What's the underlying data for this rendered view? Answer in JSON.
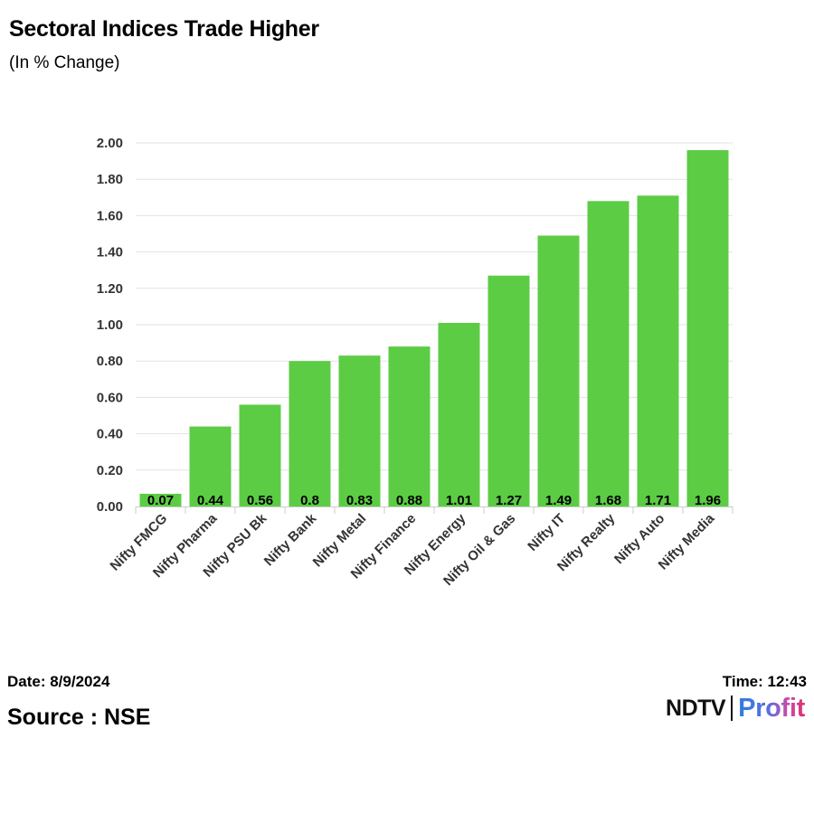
{
  "chart_data": {
    "type": "bar",
    "title": "Sectoral Indices Trade Higher",
    "subtitle": "(In % Change)",
    "xlabel": "",
    "ylabel": "",
    "categories": [
      "Nifty FMCG",
      "Nifty Pharma",
      "Nifty PSU Bk",
      "Nifty Bank",
      "Nifty Metal",
      "Nifty Finance",
      "Nifty Energy",
      "Nifty Oil & Gas",
      "Nifty IT",
      "Nifty Realty",
      "Nifty Auto",
      "Nifty Media"
    ],
    "values": [
      0.07,
      0.44,
      0.56,
      0.8,
      0.83,
      0.88,
      1.01,
      1.27,
      1.49,
      1.68,
      1.71,
      1.96
    ],
    "value_labels": [
      "0.07",
      "0.44",
      "0.56",
      "0.8",
      "0.83",
      "0.88",
      "1.01",
      "1.27",
      "1.49",
      "1.68",
      "1.71",
      "1.96"
    ],
    "ylim": [
      0,
      2
    ],
    "yticks": [
      "0.00",
      "0.20",
      "0.40",
      "0.60",
      "0.80",
      "1.00",
      "1.20",
      "1.40",
      "1.60",
      "1.80",
      "2.00"
    ],
    "grid": true,
    "legend": "none",
    "bar_color": "#5ccc45",
    "grid_color": "#e3e3e3"
  },
  "footer": {
    "date": "Date: 8/9/2024",
    "time": "Time: 12:43",
    "source": "Source : NSE"
  },
  "logo": {
    "brand": "NDTV",
    "product": "Profit"
  }
}
